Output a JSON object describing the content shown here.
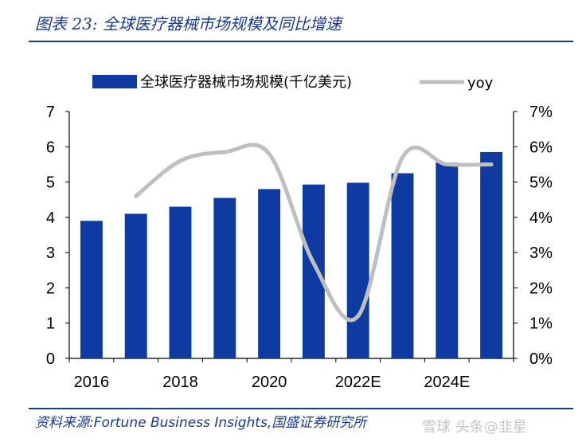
{
  "title": "图表 23:  全球医疗器械市场规模及同比增速",
  "source": "资料来源:Fortune Business Insights,国盛证券研究所",
  "watermark": "雪球 头条@韭星",
  "colors": {
    "bar": "#0f3ba0",
    "line": "#bfbfbf",
    "title": "#1a3a8f"
  },
  "chart_data": {
    "type": "bar",
    "categories": [
      "2016",
      "2017",
      "2018",
      "2019",
      "2020",
      "2021",
      "2022E",
      "2023E",
      "2024E",
      "2025E"
    ],
    "x_tick_labels": [
      "2016",
      "",
      "2018",
      "",
      "2020",
      "",
      "2022E",
      "",
      "2024E",
      ""
    ],
    "series": [
      {
        "name": "全球医疗器械市场规模(千亿美元)",
        "type": "bar",
        "axis": "left",
        "values": [
          3.9,
          4.1,
          4.3,
          4.55,
          4.8,
          4.93,
          4.98,
          5.25,
          5.55,
          5.85
        ]
      },
      {
        "name": "yoy",
        "type": "line",
        "axis": "right",
        "values": [
          null,
          4.6,
          5.6,
          5.85,
          5.8,
          2.7,
          1.2,
          5.7,
          5.5,
          5.5
        ]
      }
    ],
    "ylim_left": [
      0,
      7
    ],
    "ylim_right": [
      0,
      7
    ],
    "y_ticks_left": [
      "0",
      "1",
      "2",
      "3",
      "4",
      "5",
      "6",
      "7"
    ],
    "y_ticks_right": [
      "0%",
      "1%",
      "2%",
      "3%",
      "4%",
      "5%",
      "6%",
      "7%"
    ],
    "legend_position": "top",
    "grid": false
  }
}
